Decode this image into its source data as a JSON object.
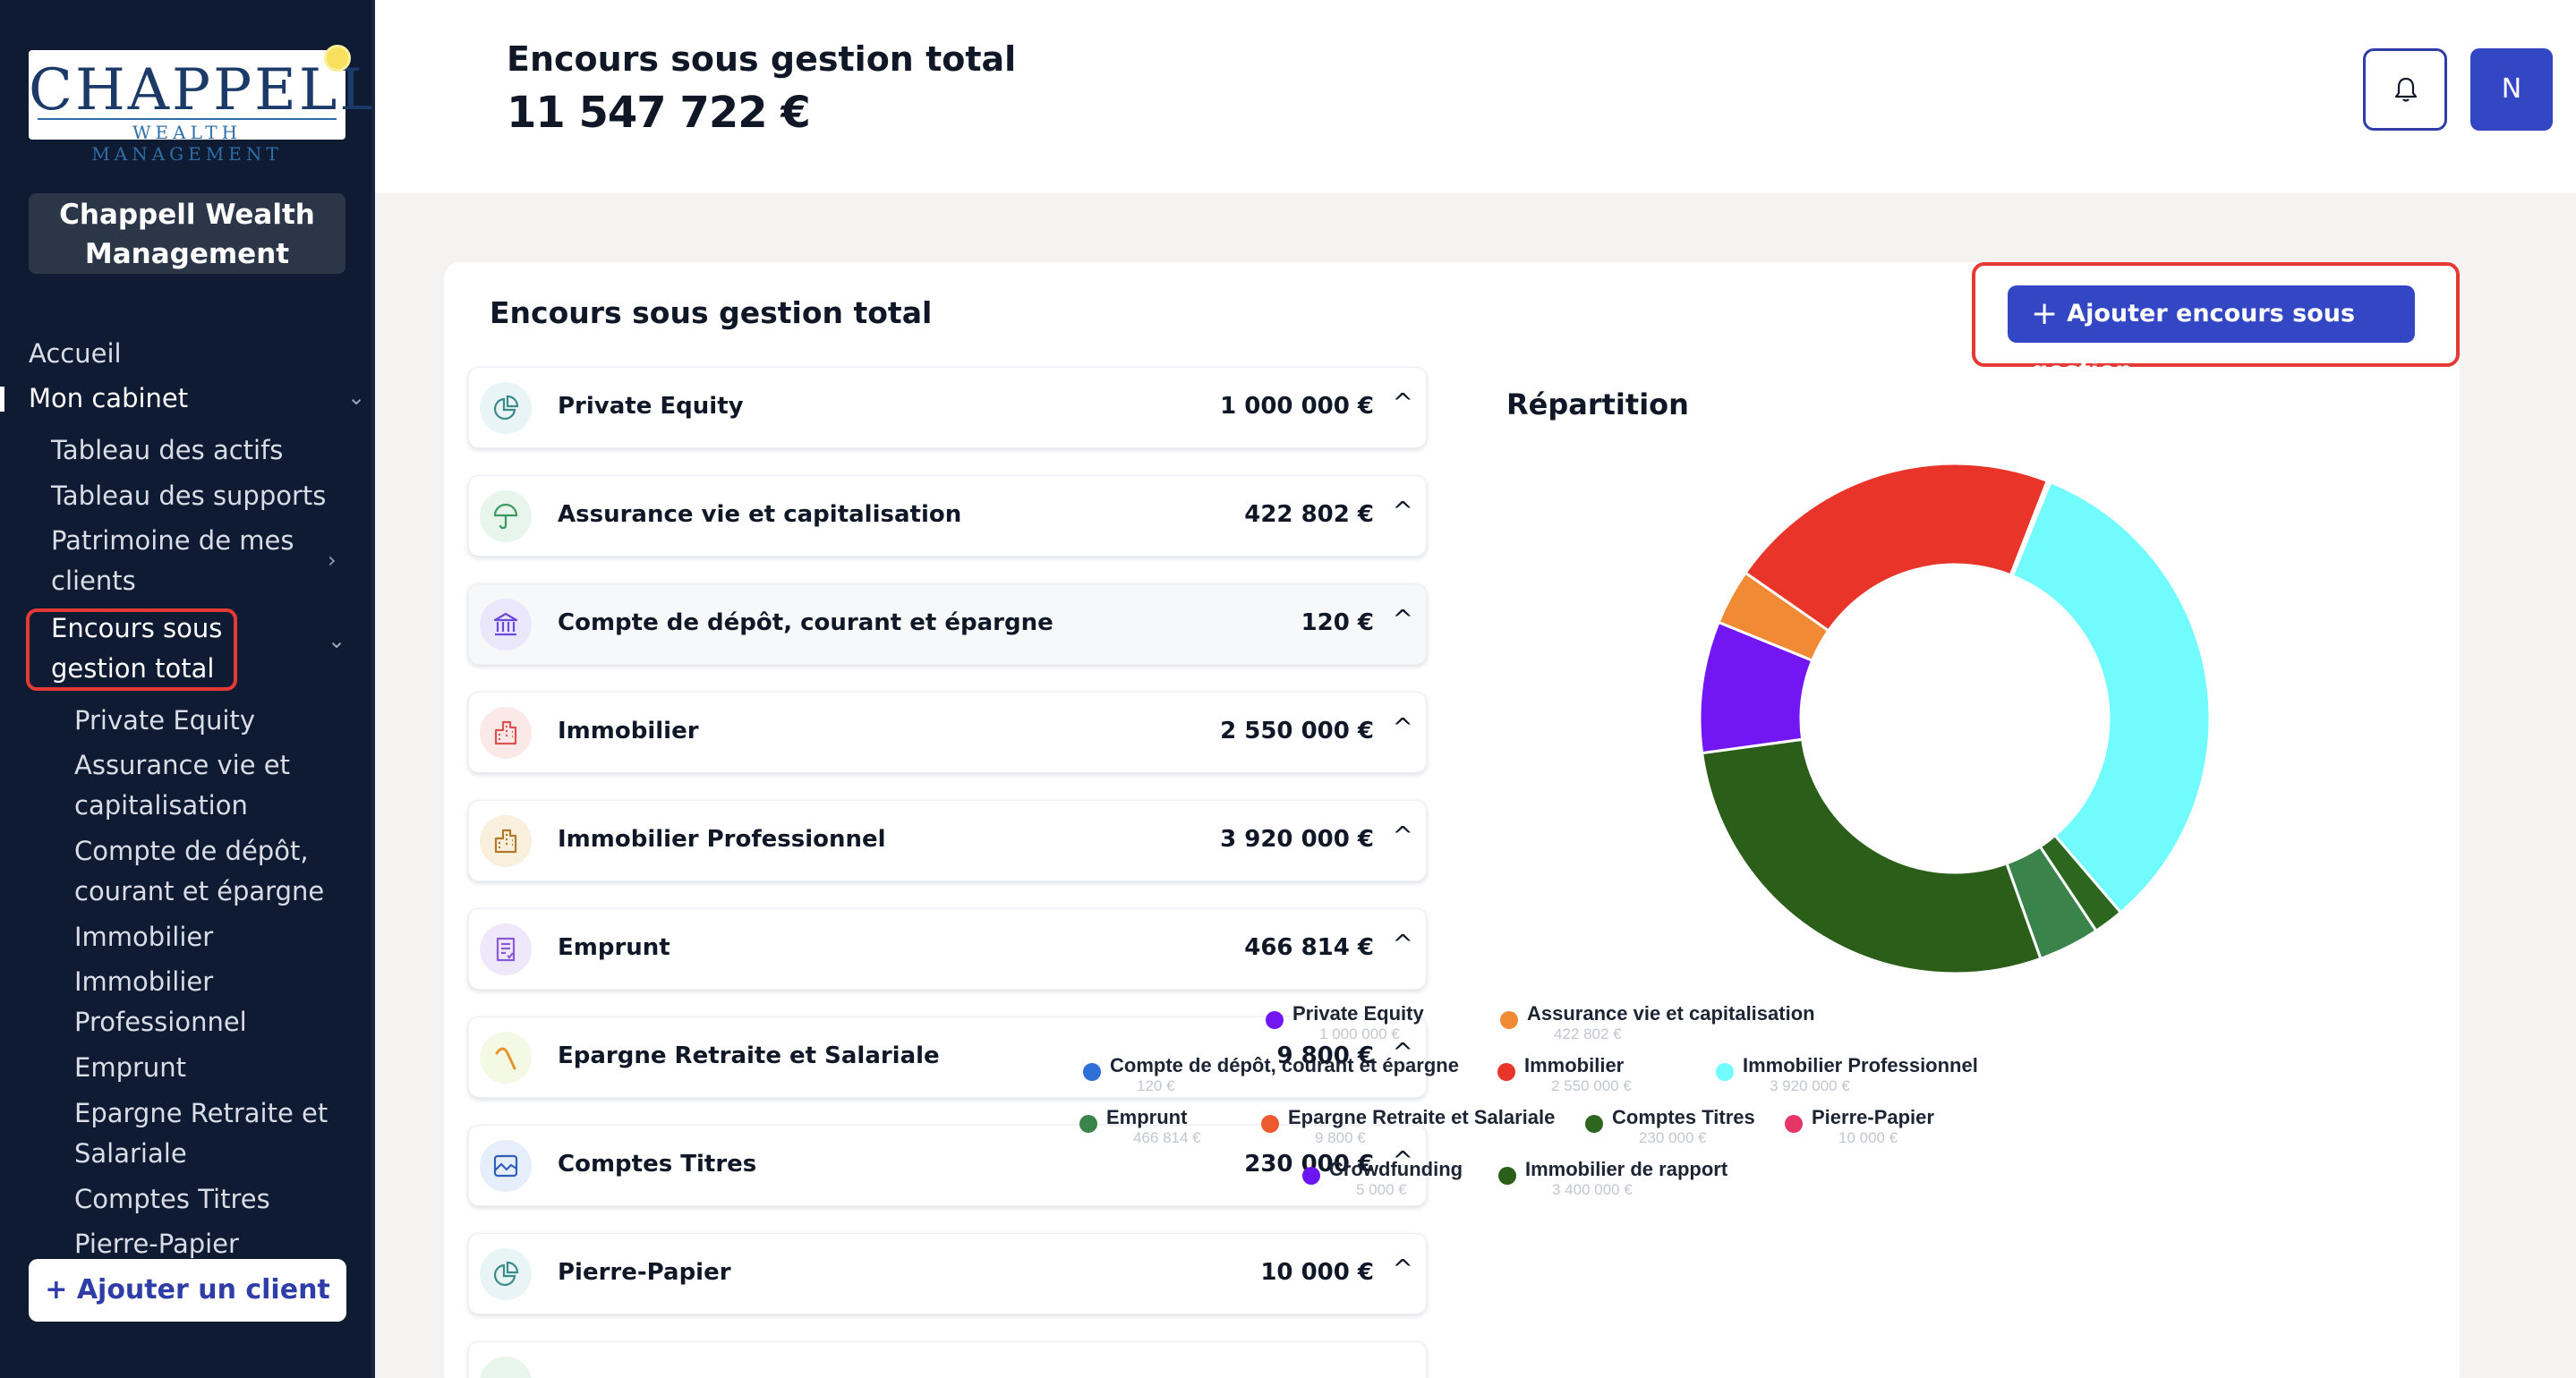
{
  "sidebar": {
    "logo_main": "CHAPPELL",
    "logo_sub": "WEALTH MANAGEMENT",
    "org_name": "Chappell Wealth Management",
    "nav": {
      "accueil": "Accueil",
      "mon_cabinet": "Mon cabinet",
      "tableau_actifs": "Tableau des actifs",
      "tableau_supports": "Tableau des supports",
      "patrimoine": "Patrimoine de mes clients",
      "encours": "Encours sous gestion total",
      "sub": [
        "Private Equity",
        "Assurance vie et capitalisation",
        "Compte de dépôt, courant et épargne",
        "Immobilier",
        "Immobilier Professionnel",
        "Emprunt",
        "Epargne Retraite et Salariale",
        "Comptes Titres",
        "Pierre-Papier"
      ]
    },
    "add_client": "Ajouter un client"
  },
  "header": {
    "title": "Encours sous gestion total",
    "total": "11 547 722 €",
    "avatar_initial": "N"
  },
  "card": {
    "title": "Encours sous gestion total",
    "add_button": "Ajouter encours sous gestion",
    "rows": [
      {
        "label": "Private Equity",
        "value": "1 000 000 €",
        "icon": "pie-chart-icon"
      },
      {
        "label": "Assurance vie et capitalisation",
        "value": "422 802 €",
        "icon": "umbrella-icon"
      },
      {
        "label": "Compte de dépôt, courant et épargne",
        "value": "120 €",
        "icon": "bank-icon"
      },
      {
        "label": "Immobilier",
        "value": "2 550 000 €",
        "icon": "building-icon"
      },
      {
        "label": "Immobilier Professionnel",
        "value": "3 920 000 €",
        "icon": "office-building-icon"
      },
      {
        "label": "Emprunt",
        "value": "466 814 €",
        "icon": "document-icon"
      },
      {
        "label": "Epargne Retraite et Salariale",
        "value": "9 800 €",
        "icon": "trend-curve-icon"
      },
      {
        "label": "Comptes Titres",
        "value": "230 000 €",
        "icon": "chart-window-icon"
      },
      {
        "label": "Pierre-Papier",
        "value": "10 000 €",
        "icon": "pie-chart-icon"
      }
    ],
    "repartition_title": "Répartition"
  },
  "chart_data": {
    "type": "pie",
    "donut": true,
    "title": "Répartition",
    "legend_position": "bottom",
    "categories": [
      "Private Equity",
      "Assurance vie et capitalisation",
      "Compte de dépôt, courant et épargne",
      "Immobilier",
      "Immobilier Professionnel",
      "Emprunt",
      "Epargne Retraite et Salariale",
      "Comptes Titres",
      "Pierre-Papier",
      "Crowdfunding",
      "Immobilier de rapport"
    ],
    "values": [
      1000000,
      422802,
      120,
      2550000,
      3920000,
      466814,
      9800,
      230000,
      10000,
      5000,
      3400000
    ],
    "value_labels": [
      "1 000 000 €",
      "422 802 €",
      "120 €",
      "2 550 000 €",
      "3 920 000 €",
      "466 814 €",
      "9 800 €",
      "230 000 €",
      "10 000 €",
      "5 000 €",
      "3 400 000 €"
    ],
    "colors": [
      "#7216f4",
      "#f08a35",
      "#2f6fd8",
      "#e9342a",
      "#72fbfd",
      "#3a844c",
      "#ee5a2f",
      "#2c661f",
      "#e63668",
      "#6b16f0",
      "#2a5e19"
    ]
  }
}
